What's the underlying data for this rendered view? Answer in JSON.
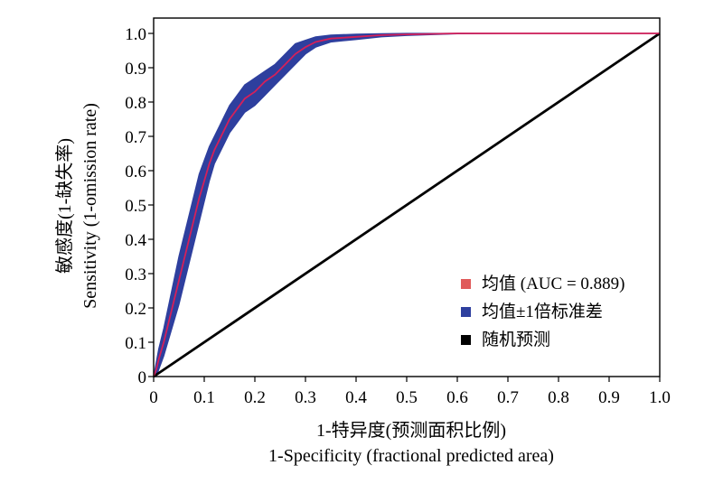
{
  "chart_data": {
    "type": "line",
    "xlabel_cn": "1-特异度(预测面积比例)",
    "xlabel_en": "1-Specificity (fractional predicted area)",
    "ylabel_cn": "敏感度(1-缺失率)",
    "ylabel_en": "Sensitivity (1-omission rate)",
    "xlim": [
      0,
      1
    ],
    "ylim": [
      0,
      1
    ],
    "x_ticks": [
      "0",
      "0.1",
      "0.2",
      "0.3",
      "0.4",
      "0.5",
      "0.6",
      "0.7",
      "0.8",
      "0.9",
      "1.0"
    ],
    "y_ticks": [
      "0",
      "0.1",
      "0.2",
      "0.3",
      "0.4",
      "0.5",
      "0.6",
      "0.7",
      "0.8",
      "0.9",
      "1.0"
    ],
    "legend": {
      "position": "bottom-right",
      "entries": [
        {
          "label": "均值 (AUC = 0.889)",
          "color": "#e05a5a"
        },
        {
          "label": "均值±1倍标准差",
          "color": "#2e3f9e"
        },
        {
          "label": "随机预测",
          "color": "#000000"
        }
      ]
    },
    "series": [
      {
        "x": [
          0,
          0.005,
          0.01,
          0.02,
          0.03,
          0.04,
          0.05,
          0.06,
          0.07,
          0.08,
          0.09,
          0.1,
          0.11,
          0.12,
          0.13,
          0.14,
          0.15,
          0.16,
          0.17,
          0.18,
          0.19,
          0.2,
          0.22,
          0.24,
          0.26,
          0.28,
          0.3,
          0.32,
          0.35,
          0.4,
          0.45,
          0.5,
          0.6,
          0.7,
          0.8,
          0.9,
          1.0
        ],
        "y": [
          0,
          0.02,
          0.05,
          0.1,
          0.16,
          0.22,
          0.28,
          0.34,
          0.4,
          0.46,
          0.52,
          0.57,
          0.62,
          0.66,
          0.69,
          0.72,
          0.75,
          0.77,
          0.79,
          0.81,
          0.82,
          0.83,
          0.86,
          0.88,
          0.91,
          0.94,
          0.96,
          0.975,
          0.985,
          0.99,
          0.995,
          0.997,
          1.0,
          1.0,
          1.0,
          1.0,
          1.0
        ],
        "color": "#d4205a"
      },
      {
        "x": [
          0,
          0.005,
          0.01,
          0.02,
          0.03,
          0.04,
          0.05,
          0.06,
          0.07,
          0.08,
          0.09,
          0.1,
          0.11,
          0.12,
          0.13,
          0.14,
          0.15,
          0.16,
          0.17,
          0.18,
          0.19,
          0.2,
          0.22,
          0.24,
          0.26,
          0.28,
          0.3,
          0.32,
          0.35,
          0.4,
          0.45,
          0.5,
          0.6,
          0.7,
          0.8,
          0.9,
          1.0
        ],
        "y_upper": [
          0,
          0.04,
          0.08,
          0.14,
          0.21,
          0.28,
          0.35,
          0.41,
          0.47,
          0.53,
          0.59,
          0.63,
          0.67,
          0.7,
          0.73,
          0.76,
          0.79,
          0.81,
          0.83,
          0.85,
          0.86,
          0.87,
          0.89,
          0.91,
          0.94,
          0.97,
          0.98,
          0.99,
          0.995,
          0.998,
          0.999,
          1.0,
          1.0,
          1.0,
          1.0,
          1.0,
          1.0
        ],
        "y_lower": [
          0,
          0.0,
          0.02,
          0.06,
          0.11,
          0.16,
          0.21,
          0.27,
          0.33,
          0.39,
          0.45,
          0.51,
          0.57,
          0.62,
          0.65,
          0.68,
          0.71,
          0.73,
          0.75,
          0.77,
          0.78,
          0.79,
          0.82,
          0.85,
          0.88,
          0.91,
          0.94,
          0.96,
          0.975,
          0.982,
          0.99,
          0.994,
          0.999,
          1.0,
          1.0,
          1.0,
          1.0
        ],
        "color": "#2e3f9e"
      },
      {
        "x": [
          0,
          1
        ],
        "y": [
          0,
          1
        ],
        "color": "#000000"
      }
    ]
  }
}
